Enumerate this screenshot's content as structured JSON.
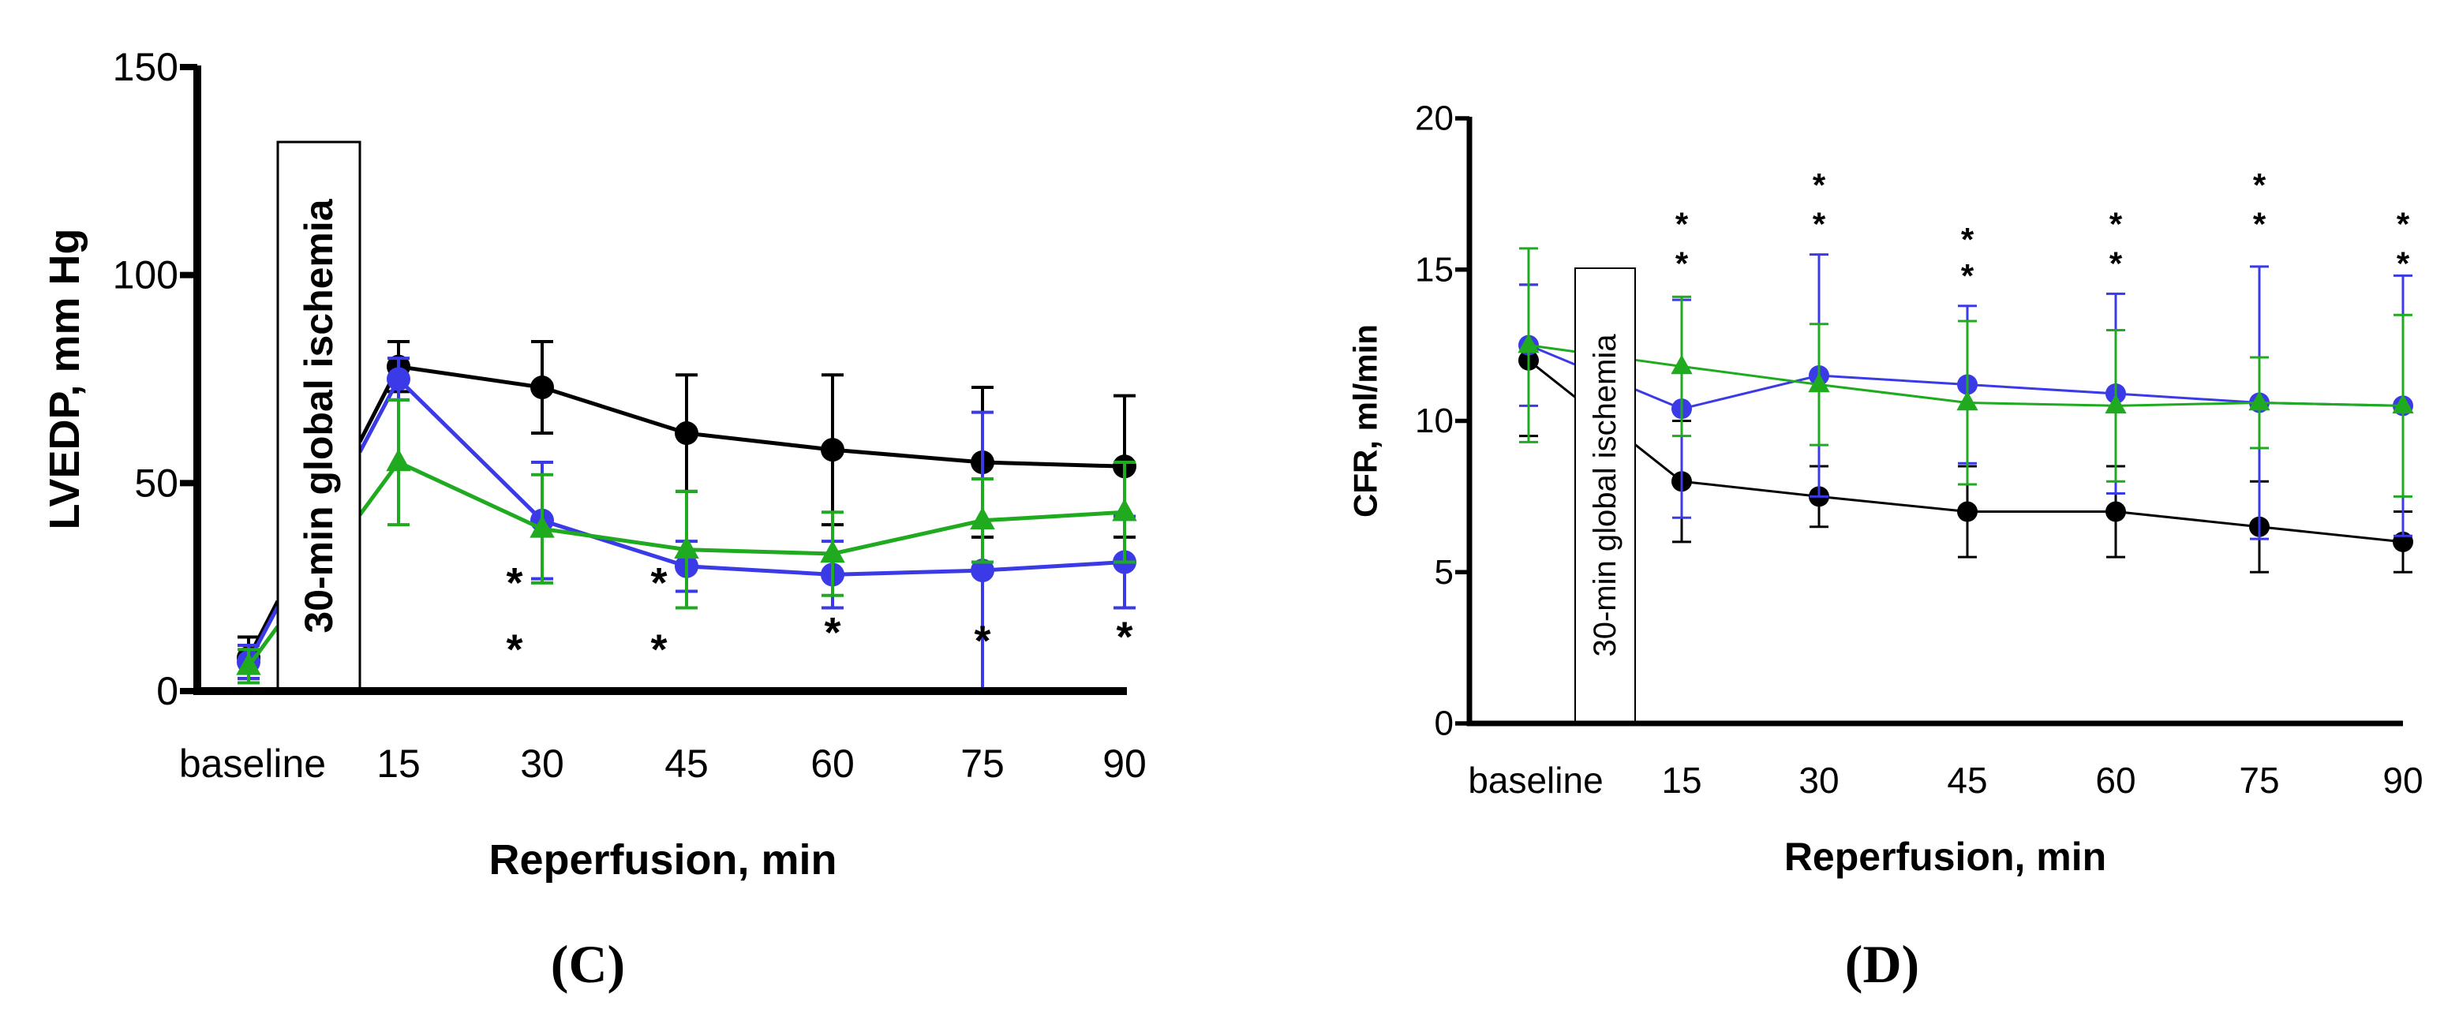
{
  "colors": {
    "black": "#000000",
    "blue": "#3a3ae6",
    "green": "#1faa1f"
  },
  "chart_data": [
    {
      "type": "line",
      "panel_label": "(C)",
      "ylabel": "LVEDP, mm Hg",
      "xlabel": "Reperfusion, min",
      "categories": [
        "baseline",
        "15",
        "30",
        "45",
        "60",
        "75",
        "90"
      ],
      "yticks": [
        "0",
        "50",
        "100",
        "150"
      ],
      "ylim": [
        0,
        150
      ],
      "ischemia_label": "30-min global ischemia",
      "series": [
        {
          "name": "black",
          "color": "#000000",
          "marker": "circle",
          "values": [
            8,
            78,
            73,
            62,
            58,
            55,
            54
          ],
          "errors": [
            5,
            6,
            11,
            14,
            18,
            18,
            17
          ]
        },
        {
          "name": "blue",
          "color": "#3a3ae6",
          "marker": "circle",
          "values": [
            7,
            75,
            41,
            30,
            28,
            29,
            31
          ],
          "errors": [
            4,
            5,
            14,
            6,
            8,
            38,
            11
          ]
        },
        {
          "name": "green",
          "color": "#1faa1f",
          "marker": "triangle",
          "values": [
            6,
            55,
            39,
            34,
            33,
            41,
            43
          ],
          "errors": [
            4,
            15,
            13,
            14,
            10,
            10,
            12
          ]
        }
      ],
      "annotations": [
        {
          "category": "30",
          "y": 26,
          "text": "*"
        },
        {
          "category": "30",
          "y": 10,
          "text": "*"
        },
        {
          "category": "45",
          "y": 26,
          "text": "*"
        },
        {
          "category": "45",
          "y": 10,
          "text": "*"
        },
        {
          "category": "60",
          "y": 14,
          "text": "*"
        },
        {
          "category": "75",
          "y": 12,
          "text": "*"
        },
        {
          "category": "90",
          "y": 13,
          "text": "*"
        }
      ]
    },
    {
      "type": "line",
      "panel_label": "(D)",
      "ylabel": "CFR, ml/min",
      "xlabel": "Reperfusion, min",
      "categories": [
        "baseline",
        "15",
        "30",
        "45",
        "60",
        "75",
        "90"
      ],
      "yticks": [
        "0",
        "5",
        "10",
        "15",
        "20"
      ],
      "ylim": [
        0,
        20
      ],
      "ischemia_label": "30-min global ischemia",
      "series": [
        {
          "name": "black",
          "color": "#000000",
          "marker": "circle",
          "values": [
            12,
            8,
            7.5,
            7,
            7,
            6.5,
            6
          ],
          "errors": [
            2.5,
            2,
            1,
            1.5,
            1.5,
            1.5,
            1
          ]
        },
        {
          "name": "blue",
          "color": "#3a3ae6",
          "marker": "circle",
          "values": [
            12.5,
            10.4,
            11.5,
            11.2,
            10.9,
            10.6,
            10.5
          ],
          "errors": [
            2,
            3.6,
            4,
            2.6,
            3.3,
            4.5,
            4.3
          ]
        },
        {
          "name": "green",
          "color": "#1faa1f",
          "marker": "triangle",
          "values": [
            12.5,
            11.8,
            11.2,
            10.6,
            10.5,
            10.6,
            10.5
          ],
          "errors": [
            3.2,
            2.3,
            2,
            2.7,
            2.5,
            1.5,
            3
          ]
        }
      ],
      "annotations": [
        {
          "category": "15",
          "y": 16.5,
          "text": "*"
        },
        {
          "category": "15",
          "y": 15.2,
          "text": "*"
        },
        {
          "category": "30",
          "y": 17.8,
          "text": "*"
        },
        {
          "category": "30",
          "y": 16.5,
          "text": "*"
        },
        {
          "category": "45",
          "y": 16.0,
          "text": "*"
        },
        {
          "category": "45",
          "y": 14.8,
          "text": "*"
        },
        {
          "category": "60",
          "y": 16.5,
          "text": "*"
        },
        {
          "category": "60",
          "y": 15.2,
          "text": "*"
        },
        {
          "category": "75",
          "y": 17.8,
          "text": "*"
        },
        {
          "category": "75",
          "y": 16.5,
          "text": "*"
        },
        {
          "category": "90",
          "y": 16.5,
          "text": "*"
        },
        {
          "category": "90",
          "y": 15.2,
          "text": "*"
        }
      ]
    }
  ]
}
